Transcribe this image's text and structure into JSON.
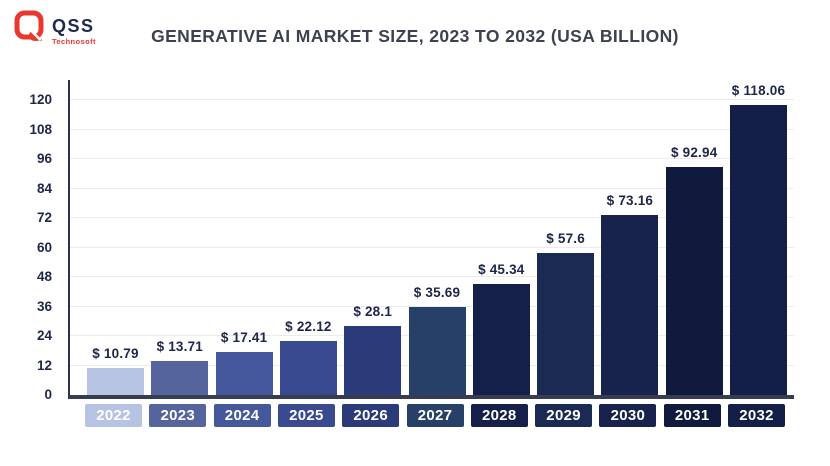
{
  "logo": {
    "name": "QSS",
    "subtitle": "Technosoft",
    "accent_color": "#e8392f",
    "text_color": "#20294d"
  },
  "chart_data": {
    "type": "bar",
    "title": "GENERATIVE AI MARKET SIZE, 2023 TO 2032 (USA BILLION)",
    "categories": [
      "2022",
      "2023",
      "2024",
      "2025",
      "2026",
      "2027",
      "2028",
      "2029",
      "2030",
      "2031",
      "2032"
    ],
    "values": [
      10.79,
      13.71,
      17.41,
      22.12,
      28.1,
      35.69,
      45.34,
      57.6,
      73.16,
      92.94,
      118.06
    ],
    "value_labels": [
      "$ 10.79",
      "$ 13.71",
      "$ 17.41",
      "$ 22.12",
      "$ 28.1",
      "$ 35.69",
      "$ 45.34",
      "$ 57.6",
      "$ 73.16",
      "$ 92.94",
      "$ 118.06"
    ],
    "bar_colors": [
      "#b7c3e3",
      "#56649e",
      "#46589c",
      "#3a4a90",
      "#2b3a78",
      "#274067",
      "#14204a",
      "#1a2a53",
      "#17234c",
      "#101a3d",
      "#131f46"
    ],
    "xlabel": "",
    "ylabel": "",
    "yticks": [
      0,
      12,
      24,
      36,
      48,
      60,
      72,
      84,
      96,
      108,
      120
    ],
    "ylim": [
      0,
      128
    ],
    "grid": true,
    "legend": "none",
    "currency_prefix": "$",
    "axis_color": "#363d52",
    "gridline_color": "#ebebeb",
    "label_color": "#1d2647"
  }
}
